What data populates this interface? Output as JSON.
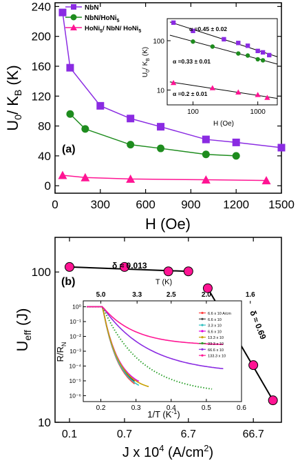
{
  "chart_data": [
    {
      "panel": "(a)",
      "type": "line",
      "xlabel": "H (Oe)",
      "ylabel_main": "U",
      "ylabel_sub": "0",
      "ylabel_mid": "/ K",
      "ylabel_sub2": "B",
      "ylabel_end": " (K)",
      "xlim": [
        0,
        1500
      ],
      "ylim": [
        -10,
        245
      ],
      "xticks": [
        "0",
        "300",
        "600",
        "900",
        "1200",
        "1500"
      ],
      "yticks": [
        "0",
        "40",
        "80",
        "120",
        "160",
        "200",
        "240"
      ],
      "series": [
        {
          "name": "NbN",
          "color": "#8a2be2",
          "marker": "square",
          "x": [
            50,
            100,
            300,
            500,
            700,
            1000,
            1200,
            1500
          ],
          "y": [
            232,
            158,
            107,
            90,
            79,
            62,
            58,
            51
          ]
        },
        {
          "name": "NbN/HoNi5",
          "color": "#1e8c1e",
          "marker": "circle",
          "x": [
            100,
            200,
            500,
            700,
            1000,
            1200
          ],
          "y": [
            96,
            76,
            55,
            50,
            42,
            40
          ]
        },
        {
          "name": "HoNi5/ NbN/ HoNi5",
          "color": "#ff1493",
          "marker": "triangle",
          "x": [
            50,
            200,
            500,
            1000,
            1400
          ],
          "y": [
            14,
            11,
            9,
            8,
            7
          ]
        }
      ],
      "legend_labels": [
        {
          "text": "NbN"
        },
        {
          "text": "NbN/HoNi",
          "sub": "5"
        },
        {
          "text": "HoNi",
          "sub": "5",
          "text2": "/ NbN/ HoNi",
          "sub2": "5"
        }
      ],
      "inset": {
        "type": "scatter",
        "xscale": "log",
        "yscale": "log",
        "xlabel": "H (Oe)",
        "ylabel": "U0 / K (K)",
        "ylabel_parts": {
          "main": "U",
          "sub": "0",
          "mid": "/ K",
          "sub2": "B",
          "end": " (K)"
        },
        "xlim": [
          40,
          2000
        ],
        "ylim": [
          5,
          280
        ],
        "xticks": [
          "100",
          "1000"
        ],
        "yticks": [
          "10",
          "100"
        ],
        "annotations": [
          "α =0.45 ± 0.02",
          "α =0.33 ± 0.01",
          "α =0.2 ± 0.01"
        ],
        "series": [
          {
            "name": "NbN",
            "x": [
              50,
              100,
              300,
              500,
              700,
              1000,
              1200,
              1500
            ],
            "y": [
              232,
              158,
              107,
              90,
              79,
              62,
              58,
              51
            ]
          },
          {
            "name": "NbN/HoNi5",
            "x": [
              100,
              200,
              500,
              700,
              1000,
              1200
            ],
            "y": [
              96,
              76,
              55,
              50,
              42,
              40
            ]
          },
          {
            "name": "HoNi5/NbN/HoNi5",
            "x": [
              50,
              200,
              500,
              1000,
              1400
            ],
            "y": [
              14,
              11,
              9,
              8,
              7
            ]
          }
        ]
      }
    },
    {
      "panel": "(b)",
      "type": "scatter",
      "xlabel": "J x 10",
      "xlabel_sup": "4",
      "xlabel_end": " (A/cm",
      "xlabel_sup2": "2",
      "xlabel_close": ")",
      "ylabel_main": "U",
      "ylabel_sub": "eff",
      "ylabel_end": " (J)",
      "xscale": "log",
      "yscale": "log",
      "xlim": [
        0.06,
        180
      ],
      "ylim": [
        10,
        170
      ],
      "xticks": [
        "0.1",
        "0.7",
        "6.7",
        "66.7"
      ],
      "yticks": [
        "10",
        "100"
      ],
      "points": {
        "x": [
          0.1,
          0.7,
          3.3,
          6.7,
          13.3,
          33.3,
          66.6,
          133.3
        ],
        "y": [
          108,
          108,
          101,
          101,
          78,
          49,
          24,
          14
        ]
      },
      "marker_color": "#ff1493",
      "annotations": [
        {
          "text": "δ ≈ 0.013"
        },
        {
          "text": "δ ≈ 0.69"
        }
      ],
      "inset": {
        "type": "line",
        "xlabel_main": "1/T (K",
        "xlabel_sup": "-1",
        "xlabel_end": ")",
        "ylabel_main": "R/R",
        "ylabel_sub": "N",
        "top_label": "T (K)",
        "top_ticks": [
          "5.0",
          "3.3",
          "2.5",
          "2.0",
          "1.6"
        ],
        "xticks": [
          "0.2",
          "0.3",
          "0.4",
          "0.5",
          "0.6"
        ],
        "yticks": [
          "10⁻⁶",
          "10⁻⁵",
          "10⁻⁴",
          "10⁻³",
          "10⁻²",
          "10⁻¹",
          "10⁰"
        ],
        "legend": [
          "6.6 x 10 A/cm",
          "6.6 x 10",
          "3.3 x 10",
          "6.6 x 10",
          "13.3 x 10",
          "33.3 x 10",
          "66.6 x 10",
          "133.3 x 10"
        ],
        "legend_colors": [
          "#ff4040",
          "#444444",
          "#30c0c0",
          "#e000e0",
          "#c8a000",
          "#2ca02c",
          "#8a2be2",
          "#ff1493"
        ]
      }
    }
  ]
}
